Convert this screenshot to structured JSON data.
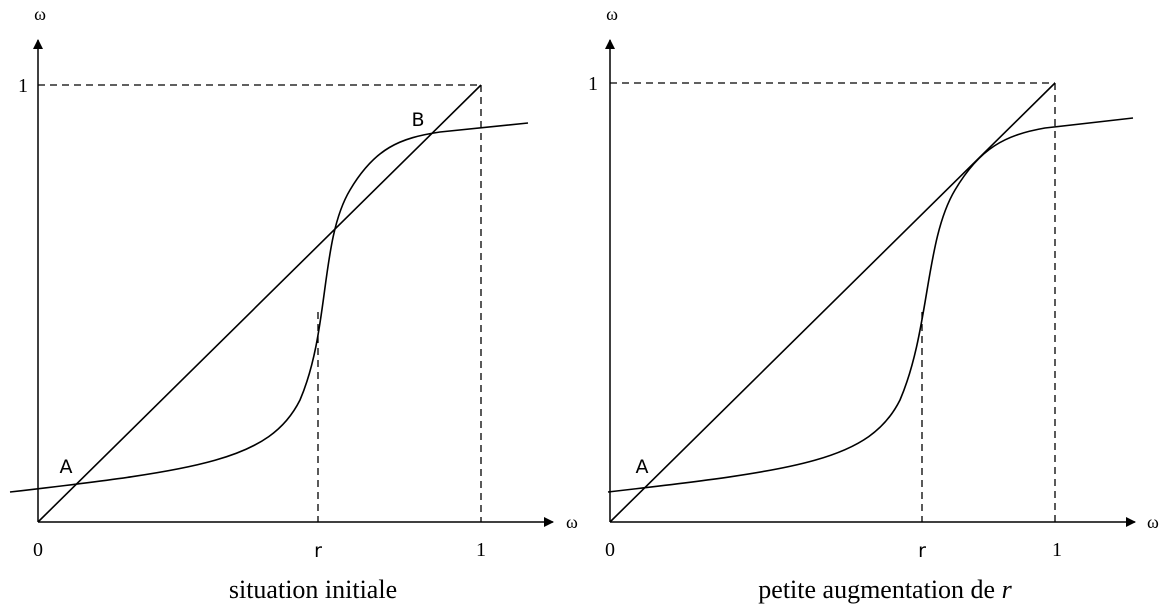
{
  "panels": [
    {
      "y_axis_label": "ω",
      "x_axis_label": "ω",
      "y_one": "1",
      "x_one": "1",
      "origin": "0",
      "r_label": "r",
      "points": [
        "A",
        "B"
      ],
      "caption": "situation initiale"
    },
    {
      "y_axis_label": "ω",
      "x_axis_label": "ω",
      "y_one": "1",
      "x_one": "1",
      "origin": "0",
      "r_label": "r",
      "points": [
        "A"
      ],
      "caption": "petite augmentation de ",
      "caption_variable": "r"
    }
  ]
}
